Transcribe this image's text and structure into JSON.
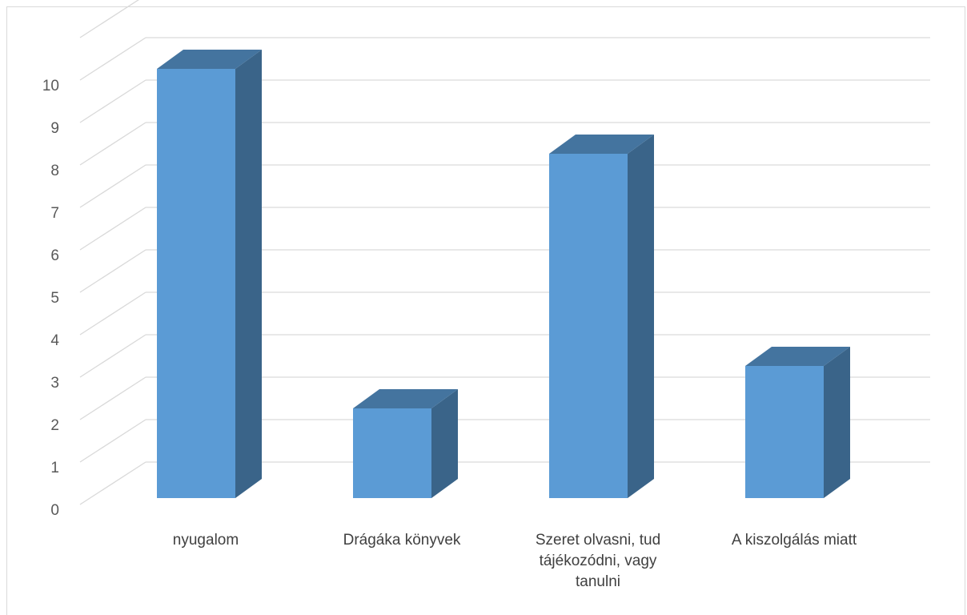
{
  "chart_data": {
    "type": "bar",
    "categories": [
      [
        "nyugalom"
      ],
      [
        "Drágáka könyvek"
      ],
      [
        "Szeret olvasni, tud",
        "tájékozódni, vagy",
        "tanulni"
      ],
      [
        "A kiszolgálás miatt"
      ]
    ],
    "values": [
      10,
      2,
      8,
      3
    ],
    "ylim": [
      0,
      11
    ],
    "yticks": [
      0,
      1,
      2,
      3,
      4,
      5,
      6,
      7,
      8,
      9,
      10
    ],
    "grid": true,
    "colors": {
      "front": "#5b9bd5",
      "top": "#44749f",
      "side": "#3a6489",
      "grid": "#d9d9d9"
    }
  }
}
